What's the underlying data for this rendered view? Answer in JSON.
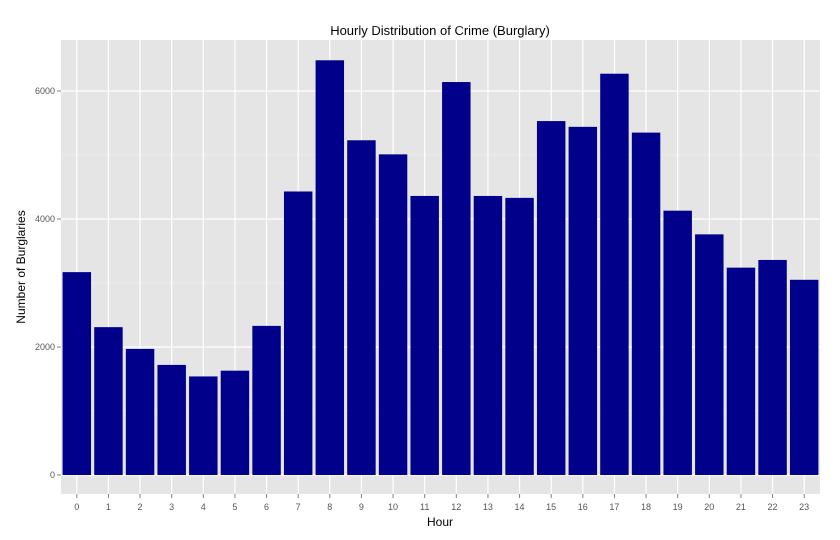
{
  "chart_data": {
    "type": "bar",
    "title": "Hourly Distribution of Crime (Burglary)",
    "xlabel": "Hour",
    "ylabel": "Number of Burglaries",
    "categories": [
      "0",
      "1",
      "2",
      "3",
      "4",
      "5",
      "6",
      "7",
      "8",
      "9",
      "10",
      "11",
      "12",
      "13",
      "14",
      "15",
      "16",
      "17",
      "18",
      "19",
      "20",
      "21",
      "22",
      "23"
    ],
    "values": [
      3170,
      2310,
      1970,
      1720,
      1540,
      1630,
      2330,
      4430,
      6480,
      5230,
      5010,
      4360,
      6140,
      4360,
      4330,
      5530,
      5440,
      6270,
      5350,
      4130,
      3760,
      3240,
      3360,
      3050
    ],
    "ylim": [
      0,
      6800
    ],
    "yticks": [
      0,
      2000,
      4000,
      6000
    ],
    "grid": true,
    "bar_color": "#00008B",
    "panel_color": "#E5E5E5",
    "grid_color": "#FFFFFF"
  }
}
